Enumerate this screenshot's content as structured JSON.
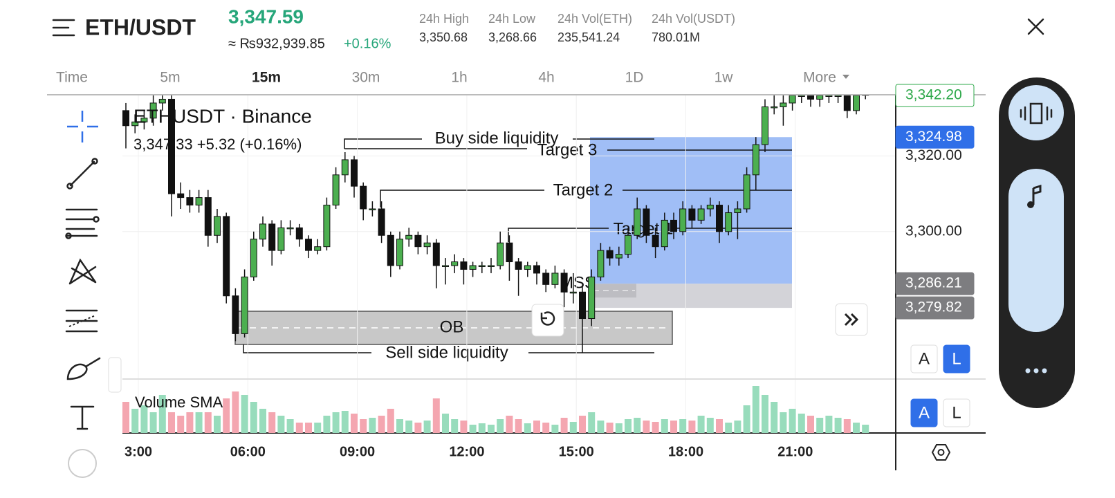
{
  "header": {
    "symbol": "ETH/USDT",
    "last_price": "3,347.59",
    "fiat_price": "≈ ₨932,939.85",
    "change": "+0.16%",
    "stats": [
      {
        "label": "24h High",
        "value": "3,350.68"
      },
      {
        "label": "24h Low",
        "value": "3,268.66"
      },
      {
        "label": "24h Vol(ETH)",
        "value": "235,541.24"
      },
      {
        "label": "24h Vol(USDT)",
        "value": "780.01M"
      }
    ]
  },
  "intervals": [
    "Time",
    "5m",
    "15m",
    "30m",
    "1h",
    "4h",
    "1D",
    "1w",
    "More"
  ],
  "selected_interval": "15m",
  "chart": {
    "title": "ETHUSDT · Binance",
    "ohlc_line": "3,347.33  +5.32 (+0.16%)",
    "ylim": [
      3261,
      3336
    ],
    "yticks": [
      {
        "value": 3320,
        "label": "3,320.00"
      },
      {
        "value": 3300,
        "label": "3,300.00"
      }
    ],
    "price_labels": [
      {
        "value": 3342.2,
        "label": "3,342.20",
        "color": "#2ea84a"
      },
      {
        "value": 3324.98,
        "label": "3,324.98",
        "color": "#2f6fe8"
      },
      {
        "value": 3286.21,
        "label": "3,286.21",
        "color": "#7d7d80"
      },
      {
        "value": 3279.82,
        "label": "3,279.82",
        "color": "#7d7d80"
      }
    ],
    "annotations": [
      "Buy side liquidity",
      "Target 3",
      "Target 2",
      "Target 1",
      "MSS",
      "OB",
      "Sell side liquidity"
    ],
    "xticks": [
      "3:00",
      "06:00",
      "09:00",
      "12:00",
      "15:00",
      "18:00",
      "21:00"
    ],
    "up_color": "#4caf50",
    "down_color": "#111111",
    "candles": [
      [
        3332,
        3334,
        3322,
        3328
      ],
      [
        3328,
        3331,
        3326,
        3329
      ],
      [
        3329,
        3332,
        3327,
        3330
      ],
      [
        3330,
        3336,
        3328,
        3334
      ],
      [
        3334,
        3337,
        3332,
        3335
      ],
      [
        3335,
        3336,
        3304,
        3310
      ],
      [
        3310,
        3313,
        3306,
        3309
      ],
      [
        3309,
        3311,
        3305,
        3307
      ],
      [
        3307,
        3311,
        3305,
        3309
      ],
      [
        3309,
        3311,
        3296,
        3299
      ],
      [
        3299,
        3306,
        3297,
        3304
      ],
      [
        3304,
        3305,
        3281,
        3283
      ],
      [
        3283,
        3285,
        3271,
        3273
      ],
      [
        3273,
        3290,
        3272,
        3288
      ],
      [
        3288,
        3300,
        3287,
        3298
      ],
      [
        3298,
        3304,
        3296,
        3302
      ],
      [
        3302,
        3303,
        3291,
        3295
      ],
      [
        3295,
        3303,
        3294,
        3301
      ],
      [
        3301,
        3303,
        3299,
        3301
      ],
      [
        3301,
        3302,
        3296,
        3298
      ],
      [
        3298,
        3299,
        3293,
        3295
      ],
      [
        3295,
        3298,
        3294,
        3296
      ],
      [
        3296,
        3309,
        3295,
        3307
      ],
      [
        3307,
        3317,
        3306,
        3315
      ],
      [
        3315,
        3321,
        3313,
        3319
      ],
      [
        3319,
        3320,
        3309,
        3312
      ],
      [
        3312,
        3313,
        3303,
        3306
      ],
      [
        3306,
        3308,
        3304,
        3306
      ],
      [
        3306,
        3308,
        3297,
        3299
      ],
      [
        3299,
        3300,
        3288,
        3291
      ],
      [
        3291,
        3300,
        3290,
        3298
      ],
      [
        3298,
        3301,
        3296,
        3299
      ],
      [
        3299,
        3300,
        3294,
        3296
      ],
      [
        3296,
        3299,
        3294,
        3297
      ],
      [
        3297,
        3298,
        3285,
        3291
      ],
      [
        3291,
        3293,
        3286,
        3291
      ],
      [
        3291,
        3294,
        3289,
        3292
      ],
      [
        3292,
        3293,
        3286,
        3290
      ],
      [
        3290,
        3292,
        3288,
        3291
      ],
      [
        3291,
        3292,
        3289,
        3291
      ],
      [
        3291,
        3293,
        3289,
        3291
      ],
      [
        3291,
        3300,
        3290,
        3297
      ],
      [
        3297,
        3299,
        3287,
        3292
      ],
      [
        3292,
        3293,
        3283,
        3290
      ],
      [
        3290,
        3292,
        3288,
        3291
      ],
      [
        3291,
        3292,
        3286,
        3289
      ],
      [
        3289,
        3290,
        3284,
        3286
      ],
      [
        3286,
        3291,
        3285,
        3289
      ],
      [
        3289,
        3290,
        3280,
        3284
      ],
      [
        3284,
        3289,
        3281,
        3284
      ],
      [
        3284,
        3286,
        3268,
        3277
      ],
      [
        3277,
        3290,
        3275,
        3288
      ],
      [
        3288,
        3297,
        3287,
        3295
      ],
      [
        3295,
        3296,
        3291,
        3293
      ],
      [
        3293,
        3296,
        3291,
        3294
      ],
      [
        3294,
        3301,
        3293,
        3299
      ],
      [
        3299,
        3309,
        3298,
        3306
      ],
      [
        3306,
        3307,
        3297,
        3299
      ],
      [
        3299,
        3301,
        3293,
        3296
      ],
      [
        3296,
        3305,
        3295,
        3303
      ],
      [
        3303,
        3305,
        3298,
        3300
      ],
      [
        3300,
        3308,
        3299,
        3306
      ],
      [
        3306,
        3307,
        3301,
        3303
      ],
      [
        3303,
        3307,
        3302,
        3306
      ],
      [
        3306,
        3309,
        3304,
        3307
      ],
      [
        3307,
        3308,
        3297,
        3300
      ],
      [
        3300,
        3307,
        3299,
        3305
      ],
      [
        3305,
        3308,
        3298,
        3306
      ],
      [
        3306,
        3317,
        3305,
        3315
      ],
      [
        3315,
        3325,
        3311,
        3323
      ],
      [
        3323,
        3335,
        3321,
        3333
      ],
      [
        3333,
        3336,
        3331,
        3333
      ],
      [
        3333,
        3337,
        3328,
        3334
      ],
      [
        3334,
        3338,
        3332,
        3336
      ],
      [
        3336,
        3338,
        3334,
        3336
      ],
      [
        3336,
        3337,
        3333,
        3335
      ],
      [
        3335,
        3338,
        3333,
        3336
      ],
      [
        3336,
        3338,
        3334,
        3336
      ],
      [
        3336,
        3338,
        3334,
        3336
      ],
      [
        3336,
        3337,
        3330,
        3332
      ],
      [
        3332,
        3338,
        3331,
        3336
      ],
      [
        3336,
        3338,
        3335,
        3337
      ]
    ],
    "volume_title": "Volume SMA",
    "volume_up_color": "#98dcbc",
    "volume_down_color": "#f4a6b0",
    "volumes": [
      45,
      35,
      40,
      30,
      55,
      30,
      25,
      30,
      30,
      30,
      25,
      50,
      60,
      55,
      45,
      35,
      30,
      25,
      20,
      15,
      15,
      15,
      25,
      30,
      32,
      28,
      20,
      22,
      25,
      35,
      20,
      18,
      15,
      18,
      50,
      28,
      20,
      18,
      12,
      14,
      12,
      20,
      25,
      20,
      14,
      18,
      15,
      12,
      22,
      16,
      25,
      30,
      18,
      15,
      14,
      20,
      22,
      18,
      16,
      20,
      18,
      20,
      18,
      25,
      22,
      20,
      15,
      18,
      40,
      68,
      55,
      45,
      30,
      35,
      28,
      25,
      22,
      25,
      22,
      20,
      15,
      12
    ]
  },
  "buttons": [
    "A",
    "L",
    "A",
    "L"
  ]
}
